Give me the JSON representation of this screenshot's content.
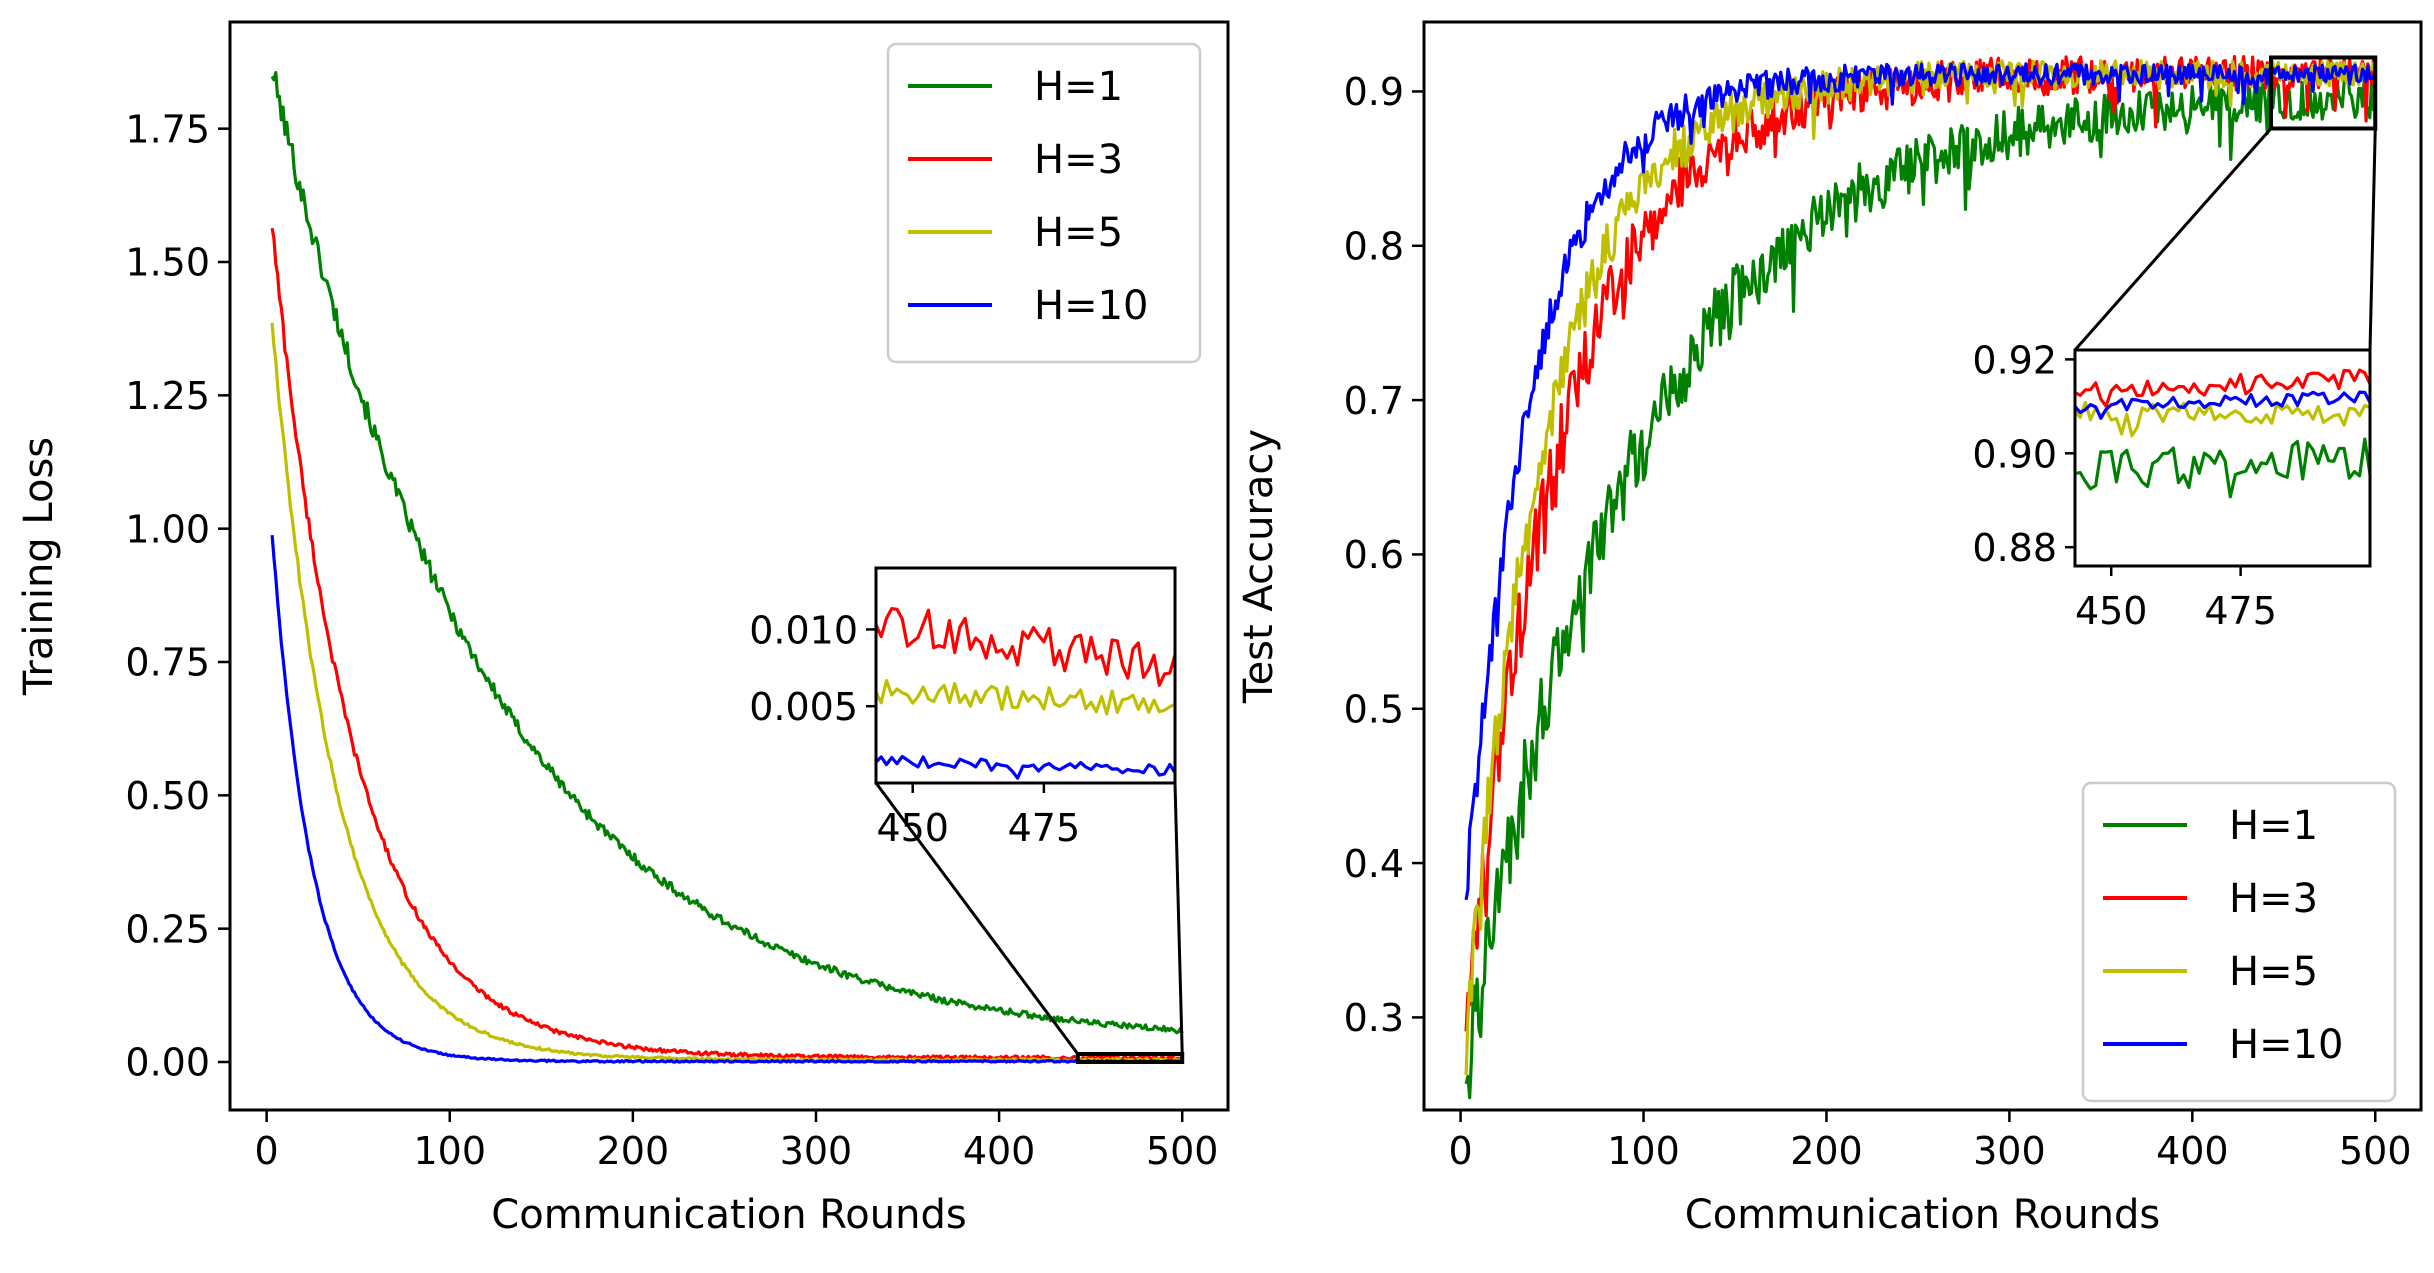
{
  "figure": {
    "legend_labels": [
      "H=1",
      "H=3",
      "H=5",
      "H=10"
    ],
    "colors": {
      "H=1": "#008000",
      "H=3": "#ff0000",
      "H=5": "#bfbf00",
      "H=10": "#0000ff"
    }
  },
  "chart_data": [
    {
      "type": "line",
      "title": "",
      "xlabel": "Communication Rounds",
      "ylabel": "Training Loss",
      "xlim": [
        -20,
        525
      ],
      "ylim": [
        -0.09,
        1.95
      ],
      "xticks": [
        0,
        100,
        200,
        300,
        400,
        500
      ],
      "yticks": [
        0.0,
        0.25,
        0.5,
        0.75,
        1.0,
        1.25,
        1.5,
        1.75
      ],
      "ytick_labels": [
        "0.00",
        "0.25",
        "0.50",
        "0.75",
        "1.00",
        "1.25",
        "1.50",
        "1.75"
      ],
      "legend_position": "upper right",
      "series": [
        {
          "name": "H=1",
          "y0": 1.86,
          "tau": 120,
          "floor": 0.03,
          "noise": 0.012
        },
        {
          "name": "H=3",
          "y0": 1.57,
          "tau": 45,
          "floor": 0.008,
          "noise": 0.008
        },
        {
          "name": "H=5",
          "y0": 1.39,
          "tau": 35,
          "floor": 0.004,
          "noise": 0.006
        },
        {
          "name": "H=10",
          "y0": 0.99,
          "tau": 22,
          "floor": 0.001,
          "noise": 0.004
        }
      ],
      "inset": {
        "xlim": [
          443,
          500
        ],
        "ylim": [
          0.0,
          0.014
        ],
        "xticks": [
          450,
          475
        ],
        "yticks": [
          0.005,
          0.01
        ],
        "ytick_labels": [
          "0.005",
          "0.010"
        ],
        "series_levels": [
          {
            "name": "H=3",
            "level": 0.0105,
            "end": 0.0075,
            "noise": 0.0014
          },
          {
            "name": "H=5",
            "level": 0.006,
            "end": 0.005,
            "noise": 0.0008
          },
          {
            "name": "H=10",
            "level": 0.0014,
            "end": 0.0008,
            "noise": 0.0004
          }
        ]
      }
    },
    {
      "type": "line",
      "title": "",
      "xlabel": "Communication Rounds",
      "ylabel": "Test Accuracy",
      "xlim": [
        -20,
        525
      ],
      "ylim": [
        0.24,
        0.945
      ],
      "xticks": [
        0,
        100,
        200,
        300,
        400,
        500
      ],
      "yticks": [
        0.3,
        0.4,
        0.5,
        0.6,
        0.7,
        0.8,
        0.9
      ],
      "ytick_labels": [
        "0.3",
        "0.4",
        "0.5",
        "0.6",
        "0.7",
        "0.8",
        "0.9"
      ],
      "legend_position": "lower right",
      "series": [
        {
          "name": "H=1",
          "y_start": 0.27,
          "y_end": 0.9,
          "tau": 95,
          "noise": 0.018
        },
        {
          "name": "H=3",
          "y_start": 0.3,
          "y_end": 0.912,
          "tau": 55,
          "noise": 0.014
        },
        {
          "name": "H=5",
          "y_start": 0.29,
          "y_end": 0.911,
          "tau": 45,
          "noise": 0.011
        },
        {
          "name": "H=10",
          "y_start": 0.38,
          "y_end": 0.911,
          "tau": 38,
          "noise": 0.008
        }
      ],
      "inset": {
        "xlim": [
          443,
          500
        ],
        "ylim": [
          0.876,
          0.922
        ],
        "xticks": [
          450,
          475
        ],
        "yticks": [
          0.88,
          0.9,
          0.92
        ],
        "ytick_labels": [
          "0.88",
          "0.90",
          "0.92"
        ],
        "series_levels": [
          {
            "name": "H=1",
            "level": 0.896,
            "end": 0.899,
            "noise": 0.0045
          },
          {
            "name": "H=3",
            "level": 0.913,
            "end": 0.916,
            "noise": 0.0022
          },
          {
            "name": "H=5",
            "level": 0.909,
            "end": 0.908,
            "noise": 0.0022
          },
          {
            "name": "H=10",
            "level": 0.91,
            "end": 0.912,
            "noise": 0.0015
          }
        ]
      }
    }
  ]
}
